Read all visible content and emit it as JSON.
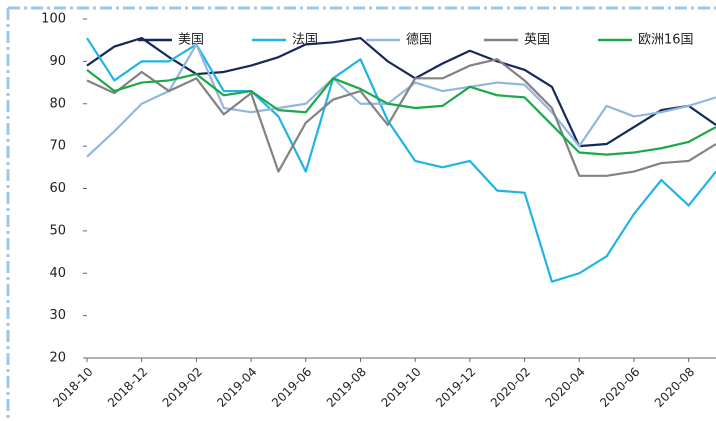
{
  "chart_data": {
    "type": "line",
    "categories": [
      "2018-10",
      null,
      "2018-12",
      null,
      "2019-02",
      null,
      "2019-04",
      null,
      "2019-06",
      null,
      "2019-08",
      null,
      "2019-10",
      null,
      "2019-12",
      null,
      "2020-02",
      null,
      "2020-04",
      null,
      "2020-06",
      null,
      "2020-08",
      null
    ],
    "series": [
      {
        "name": "美国",
        "color": "#14285a",
        "values": [
          89,
          93.5,
          95.5,
          91,
          87,
          87.5,
          89,
          91,
          94,
          94.5,
          95.5,
          90,
          86,
          89.5,
          92.5,
          90,
          88,
          84,
          70,
          70.5,
          74.5,
          78.5,
          79.5,
          75
        ]
      },
      {
        "name": "法国",
        "color": "#1fb4e6",
        "values": [
          95.5,
          85.5,
          90,
          90,
          94,
          83,
          83,
          77,
          64,
          86,
          90.5,
          76,
          66.5,
          65,
          66.5,
          59.5,
          59,
          38,
          40,
          44,
          54,
          62,
          56,
          64
        ]
      },
      {
        "name": "德国",
        "color": "#93b6de",
        "values": [
          67.5,
          73.5,
          80,
          83,
          94,
          79,
          78,
          79,
          80,
          86,
          80,
          80,
          85,
          83,
          84,
          85,
          84.5,
          78,
          70,
          79.5,
          77,
          78,
          79.5,
          81.5
        ]
      },
      {
        "name": "英国",
        "color": "#828282",
        "values": [
          85.5,
          82.5,
          87.5,
          83,
          86,
          77.5,
          82.5,
          64,
          75.5,
          81,
          83,
          75,
          86,
          86,
          89,
          90.5,
          85.5,
          79,
          63,
          63,
          64,
          66,
          66.5,
          70.5
        ]
      },
      {
        "name": "欧洲16国",
        "color": "#1aa84a",
        "values": [
          88,
          83,
          85,
          85.5,
          87,
          82,
          83,
          78.5,
          78,
          86,
          83.5,
          80,
          79,
          79.5,
          84,
          82,
          81.5,
          75,
          68.5,
          68,
          68.5,
          69.5,
          71,
          74.5
        ]
      }
    ],
    "ylim": [
      20,
      100
    ],
    "yticks": [
      20,
      30,
      40,
      50,
      60,
      70,
      80,
      90,
      100
    ]
  }
}
